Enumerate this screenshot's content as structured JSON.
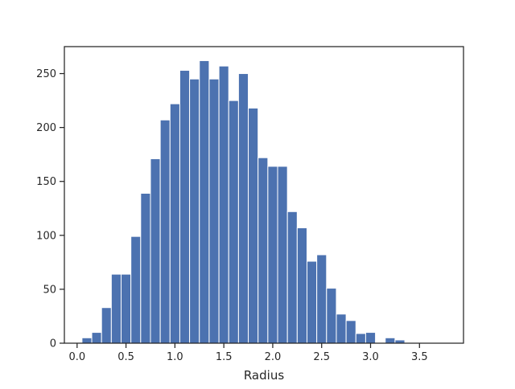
{
  "chart_data": {
    "type": "bar",
    "subtype": "histogram",
    "title": "",
    "xlabel": "Radius",
    "ylabel": "",
    "xlim": [
      -0.13,
      3.95
    ],
    "ylim": [
      0,
      275
    ],
    "xticks": [
      "0.0",
      "0.5",
      "1.0",
      "1.5",
      "2.0",
      "2.5",
      "3.0",
      "3.5"
    ],
    "yticks": [
      "0",
      "50",
      "100",
      "150",
      "200",
      "250"
    ],
    "grid": false,
    "legend": "none",
    "bar_color": "#4c72b0",
    "bin_width": 0.1,
    "bins": [
      {
        "start": 0.05,
        "count": 5
      },
      {
        "start": 0.15,
        "count": 10
      },
      {
        "start": 0.25,
        "count": 33
      },
      {
        "start": 0.35,
        "count": 64
      },
      {
        "start": 0.45,
        "count": 64
      },
      {
        "start": 0.55,
        "count": 99
      },
      {
        "start": 0.65,
        "count": 139
      },
      {
        "start": 0.75,
        "count": 171
      },
      {
        "start": 0.85,
        "count": 207
      },
      {
        "start": 0.95,
        "count": 222
      },
      {
        "start": 1.05,
        "count": 253
      },
      {
        "start": 1.15,
        "count": 245
      },
      {
        "start": 1.25,
        "count": 262
      },
      {
        "start": 1.35,
        "count": 245
      },
      {
        "start": 1.45,
        "count": 257
      },
      {
        "start": 1.55,
        "count": 225
      },
      {
        "start": 1.65,
        "count": 250
      },
      {
        "start": 1.75,
        "count": 218
      },
      {
        "start": 1.85,
        "count": 172
      },
      {
        "start": 1.95,
        "count": 164
      },
      {
        "start": 2.05,
        "count": 164
      },
      {
        "start": 2.15,
        "count": 122
      },
      {
        "start": 2.25,
        "count": 107
      },
      {
        "start": 2.35,
        "count": 76
      },
      {
        "start": 2.45,
        "count": 82
      },
      {
        "start": 2.55,
        "count": 51
      },
      {
        "start": 2.65,
        "count": 27
      },
      {
        "start": 2.75,
        "count": 21
      },
      {
        "start": 2.85,
        "count": 9
      },
      {
        "start": 2.95,
        "count": 10
      },
      {
        "start": 3.05,
        "count": 0
      },
      {
        "start": 3.15,
        "count": 5
      },
      {
        "start": 3.25,
        "count": 3
      }
    ]
  }
}
